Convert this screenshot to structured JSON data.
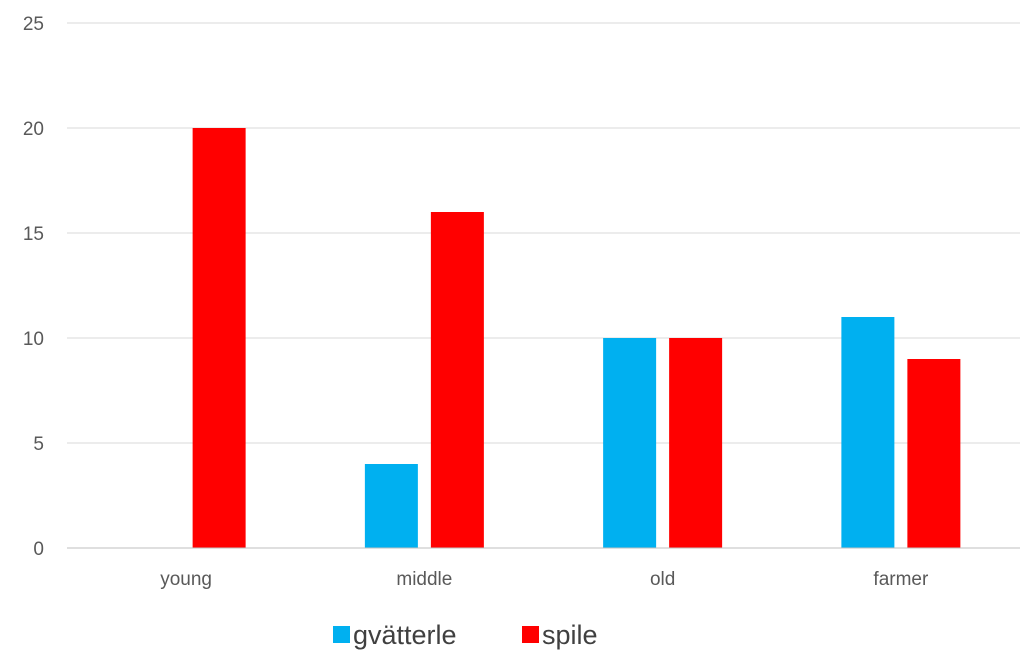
{
  "chart_data": {
    "type": "bar",
    "categories": [
      "young",
      "middle",
      "old",
      "farmer"
    ],
    "series": [
      {
        "name": "gvätterle",
        "color": "#00B0F0",
        "values": [
          0,
          4,
          10,
          11
        ]
      },
      {
        "name": "spile",
        "color": "#FF0000",
        "values": [
          20,
          16,
          10,
          9
        ]
      }
    ],
    "y_ticks": [
      "0",
      "5",
      "10",
      "15",
      "20",
      "25"
    ],
    "ylim": [
      0,
      25
    ],
    "grid": true,
    "legend_position": "bottom",
    "colors": {
      "grid": "#D9D9D9",
      "axis": "#BFBFBF"
    }
  }
}
